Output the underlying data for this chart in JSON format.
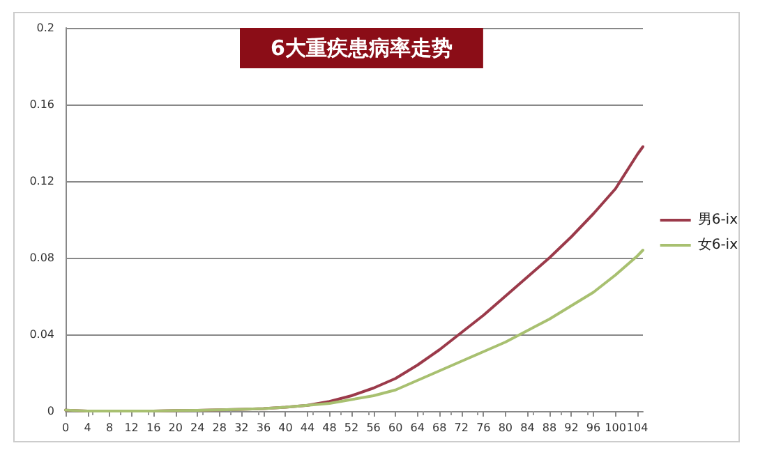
{
  "chart_data": {
    "type": "line",
    "title": "6大重疾患病率走势",
    "x": [
      0,
      4,
      8,
      12,
      16,
      20,
      24,
      28,
      32,
      36,
      40,
      44,
      48,
      52,
      56,
      60,
      64,
      68,
      72,
      76,
      80,
      84,
      88,
      92,
      96,
      100,
      104,
      105
    ],
    "series": [
      {
        "name": "男6-ix",
        "color": "#9b3a4a",
        "values": [
          0.0005,
          0,
          0,
          0,
          0,
          0.0003,
          0.0004,
          0.0006,
          0.0009,
          0.0013,
          0.002,
          0.003,
          0.005,
          0.008,
          0.012,
          0.017,
          0.024,
          0.032,
          0.041,
          0.05,
          0.06,
          0.07,
          0.08,
          0.091,
          0.103,
          0.116,
          0.134,
          0.138
        ]
      },
      {
        "name": "女6-ix",
        "color": "#a8c070",
        "values": [
          0.0005,
          0,
          0,
          0,
          0,
          0.0003,
          0.0004,
          0.0006,
          0.0009,
          0.0013,
          0.002,
          0.003,
          0.004,
          0.006,
          0.008,
          0.011,
          0.016,
          0.021,
          0.026,
          0.031,
          0.036,
          0.042,
          0.048,
          0.055,
          0.062,
          0.071,
          0.081,
          0.084
        ]
      }
    ],
    "xlim": [
      0,
      105
    ],
    "xticks": [
      0,
      4,
      8,
      12,
      16,
      20,
      24,
      28,
      32,
      36,
      40,
      44,
      48,
      52,
      56,
      60,
      64,
      68,
      72,
      76,
      80,
      84,
      88,
      92,
      96,
      100,
      104
    ],
    "ylim": [
      0,
      0.2
    ],
    "yticks": [
      0,
      0.04,
      0.08,
      0.12,
      0.16,
      0.2
    ],
    "grid": "y",
    "legend": "right",
    "marker": "none",
    "line_style": "solid"
  }
}
